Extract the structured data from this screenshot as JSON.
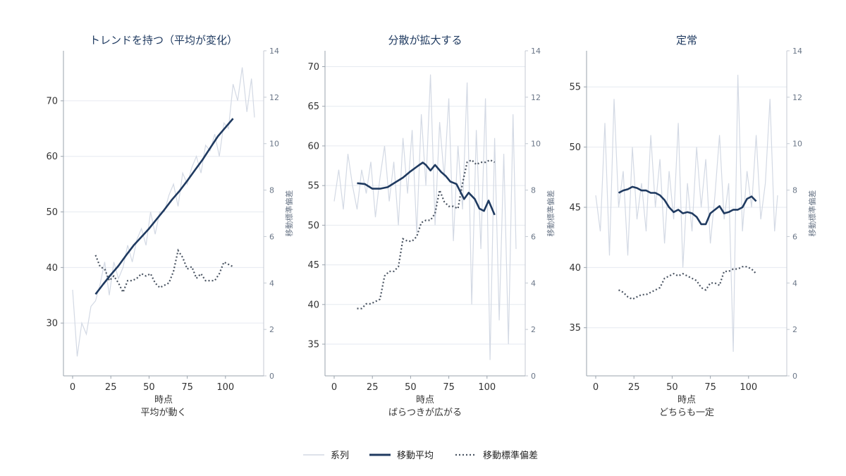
{
  "colors": {
    "series": "#d3d9e4",
    "moving_average": "#1f3a60",
    "moving_std": "#4b5563",
    "grid": "#e6eaf0",
    "axis": "#9aa3ad"
  },
  "legend": {
    "placement": "bottom-center",
    "items": [
      {
        "label": "系列",
        "style": "thin-light"
      },
      {
        "label": "移動平均",
        "style": "thick-dark"
      },
      {
        "label": "移動標準偏差",
        "style": "dotted"
      }
    ]
  },
  "chart_data": [
    {
      "type": "line",
      "title": "トレンドを持つ（平均が変化）",
      "xlabel": "時点",
      "sublabel": "平均が動く",
      "ylabel_right": "移動標準偏差",
      "xlim": [
        -6,
        125
      ],
      "ylim": [
        20.5,
        79
      ],
      "y2lim": [
        0,
        14
      ],
      "xticks": [
        0,
        25,
        50,
        75,
        100
      ],
      "yticks": [
        30,
        40,
        50,
        60,
        70
      ],
      "y2ticks": [
        0,
        2,
        4,
        6,
        8,
        10,
        12,
        14
      ],
      "grid": true,
      "series_raw": {
        "x": [
          0,
          3,
          6,
          9,
          12,
          15,
          18,
          21,
          24,
          27,
          30,
          33,
          36,
          39,
          42,
          45,
          48,
          51,
          54,
          57,
          60,
          63,
          66,
          69,
          72,
          75,
          78,
          81,
          84,
          87,
          90,
          93,
          96,
          99,
          102,
          105,
          108,
          111,
          114,
          117,
          119
        ],
        "y": [
          36,
          24,
          30,
          28,
          33,
          34,
          37,
          41,
          35,
          41,
          38,
          40,
          44,
          41,
          45,
          47,
          44,
          50,
          46,
          50,
          50,
          53,
          55,
          51,
          57,
          55,
          58,
          60,
          57,
          62,
          61,
          64,
          60,
          66,
          65,
          73,
          70,
          76,
          68,
          74,
          67
        ]
      },
      "moving_average": {
        "x": [
          15,
          20,
          25,
          30,
          35,
          40,
          45,
          50,
          55,
          60,
          65,
          70,
          75,
          80,
          85,
          90,
          95,
          100,
          105
        ],
        "y": [
          35.2,
          37,
          38.7,
          40.3,
          42.2,
          44,
          45.5,
          47,
          48.7,
          50.4,
          52.2,
          53.8,
          55.6,
          57.5,
          59.4,
          61.5,
          63.6,
          65.2,
          66.8
        ]
      },
      "moving_std": {
        "x": [
          15,
          18,
          21,
          24,
          27,
          30,
          33,
          36,
          39,
          42,
          45,
          48,
          51,
          54,
          57,
          60,
          63,
          66,
          69,
          72,
          75,
          78,
          81,
          84,
          87,
          90,
          93,
          96,
          99,
          102,
          105
        ],
        "y": [
          5.2,
          4.7,
          4.6,
          4.1,
          4.3,
          4.0,
          3.6,
          4.1,
          4.1,
          4.2,
          4.4,
          4.3,
          4.4,
          4.0,
          3.8,
          3.9,
          4.0,
          4.5,
          5.4,
          5.1,
          4.6,
          4.7,
          4.2,
          4.4,
          4.1,
          4.1,
          4.1,
          4.4,
          4.9,
          4.8,
          4.7
        ]
      }
    },
    {
      "type": "line",
      "title": "分散が拡大する",
      "xlabel": "時点",
      "sublabel": "ばらつきが広がる",
      "ylabel_right": "移動標準偏差",
      "xlim": [
        -6,
        125
      ],
      "ylim": [
        31,
        72
      ],
      "y2lim": [
        0,
        14
      ],
      "xticks": [
        0,
        25,
        50,
        75,
        100
      ],
      "yticks": [
        35,
        40,
        45,
        50,
        55,
        60,
        65,
        70
      ],
      "y2ticks": [
        0,
        2,
        4,
        6,
        8,
        10,
        12,
        14
      ],
      "grid": true,
      "series_raw": {
        "x": [
          0,
          3,
          6,
          9,
          12,
          15,
          18,
          21,
          24,
          27,
          30,
          33,
          36,
          39,
          42,
          45,
          48,
          51,
          54,
          57,
          60,
          63,
          66,
          69,
          72,
          75,
          78,
          81,
          84,
          87,
          90,
          93,
          96,
          99,
          102,
          105,
          108,
          111,
          114,
          117,
          119
        ],
        "y": [
          53,
          57,
          52,
          59,
          55,
          52,
          57,
          54,
          58,
          51,
          56,
          60,
          53,
          58,
          50,
          61,
          54,
          62,
          49,
          64,
          55,
          69,
          50,
          63,
          56,
          66,
          48,
          60,
          52,
          68,
          40,
          62,
          47,
          66,
          33,
          61,
          38,
          59,
          35,
          64,
          47
        ]
      },
      "moving_average": {
        "x": [
          15,
          20,
          25,
          30,
          35,
          40,
          45,
          50,
          55,
          58,
          60,
          63,
          66,
          70,
          73,
          76,
          80,
          85,
          88,
          92,
          95,
          98,
          101,
          103,
          105
        ],
        "y": [
          55.3,
          55.2,
          54.6,
          54.6,
          54.8,
          55.4,
          56,
          56.8,
          57.5,
          57.9,
          57.6,
          56.9,
          57.6,
          56.7,
          56.2,
          55.5,
          55.2,
          53.3,
          54.1,
          53.3,
          52.1,
          51.8,
          53.1,
          52.2,
          51.3
        ]
      },
      "moving_std": {
        "x": [
          15,
          18,
          21,
          24,
          27,
          30,
          33,
          36,
          39,
          42,
          45,
          48,
          51,
          54,
          57,
          60,
          63,
          66,
          69,
          72,
          75,
          78,
          81,
          84,
          87,
          90,
          93,
          96,
          99,
          102,
          105
        ],
        "y": [
          2.9,
          2.9,
          3.1,
          3.1,
          3.2,
          3.3,
          4.3,
          4.5,
          4.5,
          4.7,
          5.9,
          5.8,
          5.8,
          6.0,
          6.6,
          6.7,
          6.7,
          7.0,
          8.0,
          7.5,
          7.3,
          7.3,
          7.2,
          8.3,
          9.2,
          9.3,
          9.1,
          9.2,
          9.2,
          9.3,
          9.2
        ]
      }
    },
    {
      "type": "line",
      "title": "定常",
      "xlabel": "時点",
      "sublabel": "どちらも一定",
      "ylabel_right": "移動標準偏差",
      "xlim": [
        -6,
        125
      ],
      "ylim": [
        31,
        58
      ],
      "y2lim": [
        0,
        14
      ],
      "xticks": [
        0,
        25,
        50,
        75,
        100
      ],
      "yticks": [
        35,
        40,
        45,
        50,
        55
      ],
      "y2ticks": [
        0,
        2,
        4,
        6,
        8,
        10,
        12,
        14
      ],
      "grid": true,
      "series_raw": {
        "x": [
          0,
          3,
          6,
          9,
          12,
          15,
          18,
          21,
          24,
          27,
          30,
          33,
          36,
          39,
          42,
          45,
          48,
          51,
          54,
          57,
          60,
          63,
          66,
          69,
          72,
          75,
          78,
          81,
          84,
          87,
          90,
          93,
          96,
          99,
          102,
          105,
          108,
          111,
          114,
          117,
          119
        ],
        "y": [
          46,
          43,
          52,
          41,
          54,
          45,
          48,
          41,
          50,
          44,
          47,
          43,
          51,
          45,
          49,
          42,
          48,
          44,
          52,
          40,
          47,
          43,
          50,
          45,
          49,
          42,
          46,
          51,
          44,
          47,
          33,
          56,
          43,
          48,
          45,
          51,
          44,
          47,
          54,
          43,
          46
        ]
      },
      "moving_average": {
        "x": [
          15,
          18,
          21,
          24,
          27,
          30,
          33,
          36,
          39,
          42,
          45,
          48,
          51,
          54,
          57,
          60,
          63,
          66,
          69,
          72,
          75,
          78,
          81,
          84,
          87,
          90,
          93,
          96,
          99,
          102,
          105
        ],
        "y": [
          46.2,
          46.4,
          46.5,
          46.7,
          46.6,
          46.4,
          46.4,
          46.2,
          46.2,
          46.0,
          45.6,
          45.0,
          44.6,
          44.8,
          44.5,
          44.6,
          44.5,
          44.2,
          43.6,
          43.6,
          44.5,
          44.8,
          45.1,
          44.5,
          44.6,
          44.8,
          44.8,
          45.0,
          45.7,
          45.9,
          45.5
        ]
      },
      "moving_std": {
        "x": [
          15,
          18,
          21,
          24,
          27,
          30,
          33,
          36,
          39,
          42,
          45,
          48,
          51,
          54,
          57,
          60,
          63,
          66,
          69,
          72,
          75,
          78,
          81,
          84,
          87,
          90,
          93,
          96,
          99,
          102,
          105
        ],
        "y": [
          3.7,
          3.6,
          3.4,
          3.3,
          3.4,
          3.5,
          3.5,
          3.6,
          3.7,
          3.8,
          4.2,
          4.3,
          4.4,
          4.3,
          4.4,
          4.3,
          4.2,
          4.1,
          3.8,
          3.7,
          4.0,
          4.0,
          3.9,
          4.5,
          4.5,
          4.6,
          4.6,
          4.7,
          4.7,
          4.6,
          4.4
        ]
      }
    }
  ]
}
